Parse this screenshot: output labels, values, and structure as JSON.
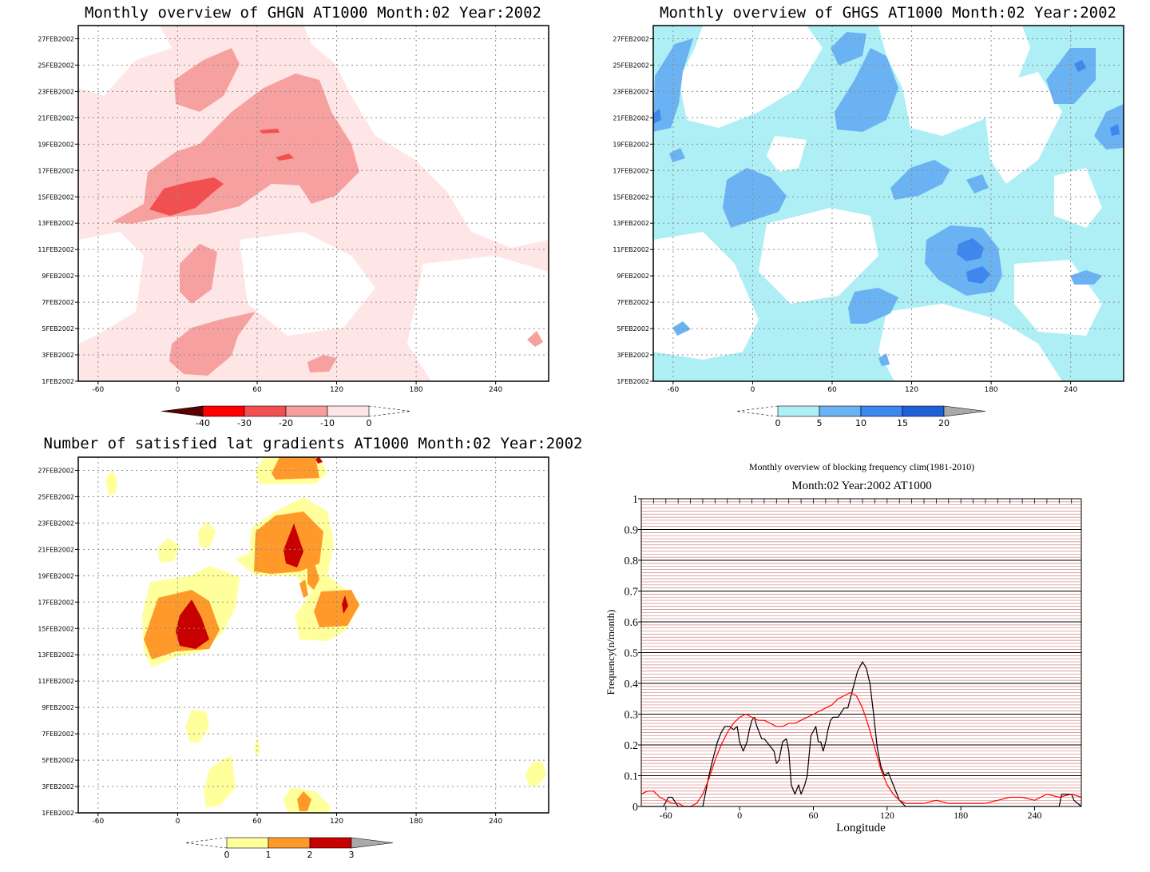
{
  "chart_data": [
    {
      "type": "heatmap",
      "title": "Monthly overview of GHGN AT1000 Month:02 Year:2002",
      "x_ticks": [
        "-60",
        "0",
        "60",
        "120",
        "180",
        "240"
      ],
      "y_ticks": [
        "1FEB2002",
        "3FEB2002",
        "5FEB2002",
        "7FEB2002",
        "9FEB2002",
        "11FEB2002",
        "13FEB2002",
        "15FEB2002",
        "17FEB2002",
        "19FEB2002",
        "21FEB2002",
        "23FEB2002",
        "25FEB2002",
        "27FEB2002"
      ],
      "xlim": [
        -75,
        280
      ],
      "ylim": [
        1,
        28
      ],
      "grid": true,
      "colorbar": {
        "ticks": [
          "-40",
          "-30",
          "-20",
          "-10",
          "0"
        ],
        "colors": [
          "#5a0000",
          "#ff0000",
          "#f25050",
          "#f49e9e",
          "#ffe6e6"
        ]
      },
      "regions": [
        {
          "level": -5,
          "color": "#ffe6e6",
          "x": [
            -75,
            280
          ],
          "y": [
            1,
            28
          ]
        },
        {
          "level": -10,
          "color": "#f7a0a0",
          "x": [
            -30,
            135
          ],
          "y": [
            13,
            25
          ]
        },
        {
          "level": -10,
          "color": "#f7a0a0",
          "x": [
            -5,
            60
          ],
          "y": [
            2,
            6
          ]
        },
        {
          "level": -10,
          "color": "#f7a0a0",
          "x": [
            0,
            25
          ],
          "y": [
            7,
            12
          ]
        },
        {
          "level": -20,
          "color": "#f25050",
          "x": [
            -25,
            30
          ],
          "y": [
            14,
            16
          ]
        }
      ]
    },
    {
      "type": "heatmap",
      "title": "Monthly overview of GHGS AT1000 Month:02 Year:2002",
      "x_ticks": [
        "-60",
        "0",
        "60",
        "120",
        "180",
        "240"
      ],
      "y_ticks": [
        "1FEB2002",
        "3FEB2002",
        "5FEB2002",
        "7FEB2002",
        "9FEB2002",
        "11FEB2002",
        "13FEB2002",
        "15FEB2002",
        "17FEB2002",
        "19FEB2002",
        "21FEB2002",
        "23FEB2002",
        "25FEB2002",
        "27FEB2002"
      ],
      "xlim": [
        -75,
        280
      ],
      "ylim": [
        1,
        28
      ],
      "grid": true,
      "colorbar": {
        "ticks": [
          "0",
          "5",
          "10",
          "15",
          "20"
        ],
        "colors": [
          "#aeeff6",
          "#6ab2f2",
          "#3d87ee",
          "#1f5fd8",
          "#a9a9a9"
        ]
      },
      "regions": [
        {
          "level": 2,
          "color": "#aeeff6",
          "x": [
            -70,
            280
          ],
          "y": [
            1,
            28
          ]
        },
        {
          "level": 7,
          "color": "#6ab2f2",
          "x": [
            -35,
            0
          ],
          "y": [
            13,
            16
          ]
        },
        {
          "level": 7,
          "color": "#6ab2f2",
          "x": [
            60,
            110
          ],
          "y": [
            18,
            27
          ]
        },
        {
          "level": 7,
          "color": "#6ab2f2",
          "x": [
            125,
            180
          ],
          "y": [
            8,
            12
          ]
        },
        {
          "level": 12,
          "color": "#3d87ee",
          "x": [
            150,
            180
          ],
          "y": [
            8,
            11
          ]
        }
      ]
    },
    {
      "type": "heatmap",
      "title": "Number of satisfied lat gradients AT1000 Month:02 Year:2002",
      "x_ticks": [
        "-60",
        "0",
        "60",
        "120",
        "180",
        "240"
      ],
      "y_ticks": [
        "1FEB2002",
        "3FEB2002",
        "5FEB2002",
        "7FEB2002",
        "9FEB2002",
        "11FEB2002",
        "13FEB2002",
        "15FEB2002",
        "17FEB2002",
        "19FEB2002",
        "21FEB2002",
        "23FEB2002",
        "25FEB2002",
        "27FEB2002"
      ],
      "xlim": [
        -75,
        280
      ],
      "ylim": [
        1,
        28
      ],
      "grid": true,
      "colorbar": {
        "ticks": [
          "0",
          "1",
          "2",
          "3"
        ],
        "colors": [
          "#ffff9c",
          "#ff9a2a",
          "#c80000",
          "#a9a9a9"
        ]
      },
      "regions": [
        {
          "level": 0.5,
          "color": "#ffff9c",
          "x": [
            -30,
            45
          ],
          "y": [
            13,
            18
          ]
        },
        {
          "level": 0.5,
          "color": "#ffff9c",
          "x": [
            50,
            110
          ],
          "y": [
            18,
            23
          ]
        },
        {
          "level": 1.5,
          "color": "#ff9a2a",
          "x": [
            -25,
            25
          ],
          "y": [
            14,
            17
          ]
        },
        {
          "level": 1.5,
          "color": "#ff9a2a",
          "x": [
            55,
            105
          ],
          "y": [
            19,
            22
          ]
        },
        {
          "level": 2.5,
          "color": "#c80000",
          "x": [
            -5,
            20
          ],
          "y": [
            14,
            16
          ]
        }
      ]
    },
    {
      "type": "line",
      "title": "Monthly overview of blocking frequency clim(1981-2010)",
      "subtitle": "Month:02 Year:2002  AT1000",
      "xlabel": "Longitude",
      "ylabel": "Frequency(n/month)",
      "x_ticks": [
        "-60",
        "0",
        "60",
        "120",
        "180",
        "240"
      ],
      "y_ticks": [
        "0",
        "0.1",
        "0.2",
        "0.3",
        "0.4",
        "0.5",
        "0.6",
        "0.7",
        "0.8",
        "0.9",
        "1"
      ],
      "xlim": [
        -80,
        278
      ],
      "ylim": [
        0,
        1
      ],
      "grid": true,
      "series": [
        {
          "color": "#000000",
          "x": [
            -80,
            -62,
            -58,
            -55,
            -50,
            -45,
            -40,
            -30,
            -25,
            -22,
            -18,
            -15,
            -12,
            -8,
            -5,
            -2,
            0,
            3,
            6,
            8,
            10,
            12,
            14,
            16,
            18,
            20,
            24,
            28,
            30,
            32,
            35,
            38,
            40,
            42,
            45,
            48,
            50,
            53,
            55,
            58,
            62,
            64,
            66,
            68,
            70,
            72,
            74,
            76,
            80,
            85,
            88,
            92,
            96,
            100,
            103,
            106,
            109,
            112,
            115,
            118,
            121,
            125,
            130,
            135,
            260,
            262,
            266,
            270,
            272,
            278
          ],
          "values": [
            0,
            0,
            0.03,
            0.03,
            0,
            0,
            0,
            0,
            0.1,
            0.15,
            0.21,
            0.24,
            0.26,
            0.26,
            0.25,
            0.26,
            0.21,
            0.18,
            0.21,
            0.25,
            0.28,
            0.29,
            0.26,
            0.24,
            0.22,
            0.22,
            0.2,
            0.18,
            0.14,
            0.15,
            0.21,
            0.22,
            0.18,
            0.07,
            0.04,
            0.07,
            0.04,
            0.07,
            0.1,
            0.23,
            0.26,
            0.21,
            0.21,
            0.18,
            0.21,
            0.25,
            0.28,
            0.29,
            0.29,
            0.32,
            0.32,
            0.38,
            0.44,
            0.47,
            0.45,
            0.4,
            0.3,
            0.19,
            0.13,
            0.1,
            0.11,
            0.07,
            0.02,
            0,
            0,
            0.04,
            0.04,
            0.04,
            0.02,
            0
          ]
        },
        {
          "color": "#ff0000",
          "x": [
            -80,
            -75,
            -70,
            -65,
            -60,
            -55,
            -50,
            -45,
            -40,
            -35,
            -30,
            -25,
            -20,
            -15,
            -10,
            -5,
            0,
            5,
            10,
            15,
            20,
            25,
            30,
            35,
            40,
            45,
            50,
            55,
            60,
            65,
            70,
            75,
            80,
            85,
            90,
            95,
            100,
            105,
            110,
            115,
            120,
            125,
            130,
            135,
            140,
            150,
            160,
            170,
            180,
            190,
            200,
            210,
            220,
            230,
            240,
            250,
            260,
            270,
            278
          ],
          "values": [
            0.04,
            0.05,
            0.05,
            0.03,
            0.02,
            0.01,
            0.01,
            0,
            0,
            0.01,
            0.04,
            0.09,
            0.15,
            0.2,
            0.24,
            0.27,
            0.29,
            0.3,
            0.29,
            0.28,
            0.28,
            0.27,
            0.26,
            0.26,
            0.27,
            0.27,
            0.28,
            0.29,
            0.3,
            0.31,
            0.32,
            0.33,
            0.35,
            0.36,
            0.37,
            0.36,
            0.32,
            0.26,
            0.19,
            0.12,
            0.07,
            0.04,
            0.02,
            0.01,
            0.01,
            0.01,
            0.02,
            0.01,
            0.01,
            0.01,
            0.01,
            0.02,
            0.03,
            0.03,
            0.02,
            0.04,
            0.03,
            0.04,
            0.03
          ]
        }
      ]
    }
  ]
}
